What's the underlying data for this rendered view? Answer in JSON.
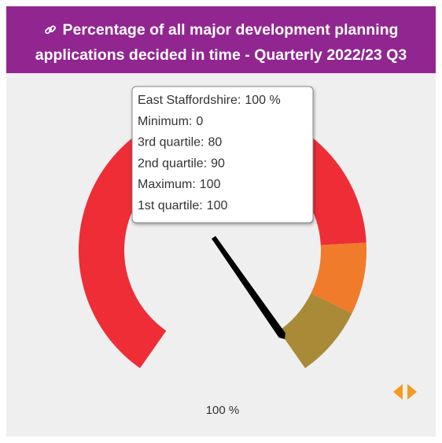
{
  "chart_data": {
    "type": "gauge",
    "title": "Percentage of all major development planning applications decided in time - Quarterly 2022/23 Q3",
    "ylim": [
      0,
      100
    ],
    "value": 100,
    "value_label": "100 %",
    "needle_color": "#000000",
    "bands": [
      {
        "from": 0,
        "to": 80,
        "color": "#ee2d37"
      },
      {
        "from": 80,
        "to": 90,
        "color": "#f07b2a"
      },
      {
        "from": 90,
        "to": 100,
        "color": "#a88a37"
      }
    ],
    "tooltip": [
      {
        "label": "East Staffordshire:",
        "value": 100,
        "value_label": "100 %"
      },
      {
        "label": "Minimum:",
        "value": 0
      },
      {
        "label": "3rd quartile:",
        "value": 80
      },
      {
        "label": "2nd quartile:",
        "value": 90
      },
      {
        "label": "Maximum:",
        "value": 100
      },
      {
        "label": "1st quartile:",
        "value": 100
      }
    ]
  }
}
